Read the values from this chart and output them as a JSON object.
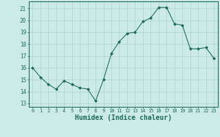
{
  "x": [
    0,
    1,
    2,
    3,
    4,
    5,
    6,
    7,
    8,
    9,
    10,
    11,
    12,
    13,
    14,
    15,
    16,
    17,
    18,
    19,
    20,
    21,
    22,
    23
  ],
  "y": [
    16.0,
    15.2,
    14.6,
    14.2,
    14.9,
    14.6,
    14.3,
    14.2,
    13.2,
    15.0,
    17.2,
    18.2,
    18.9,
    19.0,
    19.9,
    20.2,
    21.1,
    21.1,
    19.7,
    19.6,
    17.6,
    17.6,
    17.7,
    16.8
  ],
  "line_color": "#1a6b5a",
  "marker": "D",
  "marker_size": 2.0,
  "bg_color": "#cceae7",
  "grid_color": "#b0d4d0",
  "xlabel": "Humidex (Indice chaleur)",
  "ylabel_ticks": [
    13,
    14,
    15,
    16,
    17,
    18,
    19,
    20,
    21
  ],
  "xlim": [
    -0.5,
    23.5
  ],
  "ylim": [
    12.7,
    21.6
  ],
  "tick_color": "#1a6b5a",
  "label_fontsize": 7,
  "tick_fontsize": 5,
  "axis_color": "#1a6b5a"
}
